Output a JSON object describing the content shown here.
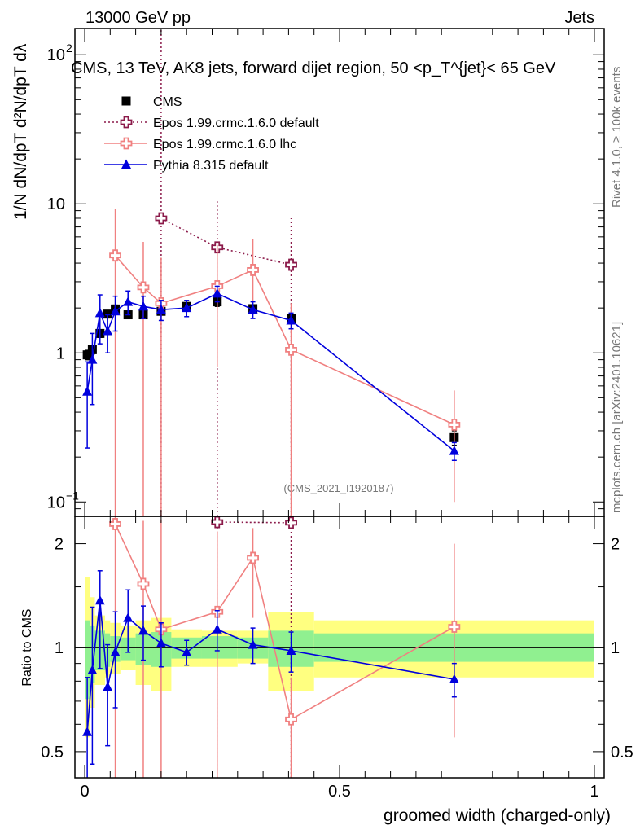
{
  "header": {
    "left": "13000 GeV pp",
    "right": "Jets",
    "side_rivet": "Rivet 4.1.0, ≥ 100k events",
    "side_mcplots": "mcplots.cern.ch [arXiv:2401.10621]"
  },
  "labels": {
    "ylabel_main": "1/N dN/dpT d²N/dpT dλ",
    "ylabel_ratio": "Ratio to CMS",
    "xlabel": "groomed width (charged-only)",
    "analysis_id": "(CMS_2021_I1920187)"
  },
  "chart_data": [
    {
      "type": "scatter",
      "title": "CMS, 13 TeV, AK8 jets, forward dijet region, 50 <p_T^{jet}< 65 GeV",
      "xlabel": "groomed width (charged-only)",
      "ylabel": "1/N dN/dpT d²N/dpT dλ",
      "yscale": "log",
      "xlim": [
        0,
        1
      ],
      "ylim": [
        0.08,
        150
      ],
      "yticks": [
        {
          "value": 0.1,
          "label": "10",
          "exp": "−1"
        },
        {
          "value": 1,
          "label": "1",
          "exp": ""
        },
        {
          "value": 10,
          "label": "10",
          "exp": ""
        },
        {
          "value": 100,
          "label": "10",
          "exp": "2"
        }
      ],
      "legend": [
        "CMS",
        "Epos 1.99.crmc.1.6.0 default",
        "Epos 1.99.crmc.1.6.0 lhc",
        "Pythia 8.315 default"
      ],
      "legend_position": "top-left",
      "series": [
        {
          "name": "CMS",
          "color": "#000000",
          "marker": "square",
          "x": [
            0.005,
            0.015,
            0.03,
            0.045,
            0.06,
            0.085,
            0.115,
            0.15,
            0.2,
            0.26,
            0.33,
            0.405,
            0.725
          ],
          "y": [
            0.97,
            1.05,
            1.35,
            1.82,
            1.97,
            1.8,
            1.8,
            1.9,
            2.05,
            2.2,
            1.98,
            1.7,
            0.27
          ],
          "yerr_low": [
            0.07,
            0.07,
            0.08,
            0.1,
            0.12,
            0.1,
            0.1,
            0.1,
            0.12,
            0.15,
            0.12,
            0.1,
            0.03
          ],
          "yerr_high": [
            0.07,
            0.07,
            0.08,
            0.1,
            0.12,
            0.1,
            0.1,
            0.1,
            0.12,
            0.15,
            0.12,
            0.1,
            0.03
          ]
        },
        {
          "name": "Epos 1.99.crmc.1.6.0 default",
          "color": "#8b1a4a",
          "marker": "open-cross",
          "line": "dotted",
          "x": [
            0.15,
            0.26,
            0.405
          ],
          "y": [
            8.0,
            5.1,
            3.9
          ],
          "yerr_low": [
            7.99,
            5.09,
            3.89
          ],
          "yerr_high": [
            150,
            5.3,
            4.1
          ]
        },
        {
          "name": "Epos 1.99.crmc.1.6.0 lhc",
          "color": "#f08080",
          "marker": "open-cross",
          "line": "solid",
          "x": [
            0.06,
            0.115,
            0.15,
            0.26,
            0.33,
            0.405,
            0.725
          ],
          "y": [
            4.5,
            2.75,
            2.15,
            2.8,
            3.6,
            1.05,
            0.33
          ],
          "yerr_low": [
            4.49,
            2.74,
            2.14,
            2.0,
            1.8,
            1.04,
            0.23
          ],
          "yerr_high": [
            4.7,
            2.8,
            2.2,
            2.5,
            2.2,
            1.1,
            0.23
          ]
        },
        {
          "name": "Pythia 8.315 default",
          "color": "#0000dd",
          "marker": "filled-triangle",
          "line": "solid",
          "x": [
            0.005,
            0.015,
            0.03,
            0.045,
            0.06,
            0.085,
            0.115,
            0.15,
            0.2,
            0.26,
            0.33,
            0.405,
            0.725
          ],
          "y": [
            0.55,
            0.9,
            1.85,
            1.4,
            1.9,
            2.2,
            2.05,
            1.95,
            2.0,
            2.5,
            1.95,
            1.65,
            0.22
          ],
          "yerr_low": [
            0.32,
            0.45,
            0.7,
            0.4,
            0.5,
            0.4,
            0.35,
            0.3,
            0.25,
            0.3,
            0.25,
            0.2,
            0.03
          ],
          "yerr_high": [
            0.32,
            0.45,
            0.6,
            0.4,
            0.5,
            0.4,
            0.35,
            0.3,
            0.25,
            0.3,
            0.25,
            0.2,
            0.03
          ]
        }
      ]
    },
    {
      "type": "scatter",
      "title": "",
      "xlabel": "groomed width (charged-only)",
      "ylabel": "Ratio to CMS",
      "yscale": "log",
      "xlim": [
        0,
        1
      ],
      "ylim": [
        0.42,
        2.4
      ],
      "yticks": [
        {
          "value": 0.5,
          "label": "0.5"
        },
        {
          "value": 1,
          "label": "1"
        },
        {
          "value": 2,
          "label": "2"
        }
      ],
      "xticks": [
        {
          "value": 0,
          "label": "0"
        },
        {
          "value": 0.5,
          "label": "0.5"
        },
        {
          "value": 1,
          "label": "1"
        }
      ],
      "bands": {
        "color_inner": "#90f090",
        "color_outer": "#ffff80",
        "bins": [
          {
            "x0": 0.0,
            "x1": 0.01,
            "in_lo": 0.71,
            "in_hi": 1.2,
            "out_lo": 0.55,
            "out_hi": 1.6
          },
          {
            "x0": 0.01,
            "x1": 0.02,
            "in_lo": 0.79,
            "in_hi": 1.16,
            "out_lo": 0.67,
            "out_hi": 1.4
          },
          {
            "x0": 0.02,
            "x1": 0.04,
            "in_lo": 0.86,
            "in_hi": 1.12,
            "out_lo": 0.78,
            "out_hi": 1.24
          },
          {
            "x0": 0.04,
            "x1": 0.05,
            "in_lo": 0.88,
            "in_hi": 1.1,
            "out_lo": 0.82,
            "out_hi": 1.2
          },
          {
            "x0": 0.05,
            "x1": 0.07,
            "in_lo": 0.91,
            "in_hi": 1.08,
            "out_lo": 0.84,
            "out_hi": 1.18
          },
          {
            "x0": 0.07,
            "x1": 0.1,
            "in_lo": 0.92,
            "in_hi": 1.07,
            "out_lo": 0.86,
            "out_hi": 1.16
          },
          {
            "x0": 0.1,
            "x1": 0.13,
            "in_lo": 0.89,
            "in_hi": 1.1,
            "out_lo": 0.78,
            "out_hi": 1.2
          },
          {
            "x0": 0.13,
            "x1": 0.17,
            "in_lo": 0.88,
            "in_hi": 1.11,
            "out_lo": 0.75,
            "out_hi": 1.22
          },
          {
            "x0": 0.17,
            "x1": 0.23,
            "in_lo": 0.93,
            "in_hi": 1.07,
            "out_lo": 0.88,
            "out_hi": 1.13
          },
          {
            "x0": 0.23,
            "x1": 0.3,
            "in_lo": 0.93,
            "in_hi": 1.08,
            "out_lo": 0.88,
            "out_hi": 1.12
          },
          {
            "x0": 0.3,
            "x1": 0.36,
            "in_lo": 0.93,
            "in_hi": 1.07,
            "out_lo": 0.9,
            "out_hi": 1.12
          },
          {
            "x0": 0.36,
            "x1": 0.45,
            "in_lo": 0.88,
            "in_hi": 1.12,
            "out_lo": 0.75,
            "out_hi": 1.27
          },
          {
            "x0": 0.45,
            "x1": 1.0,
            "in_lo": 0.91,
            "in_hi": 1.1,
            "out_lo": 0.82,
            "out_hi": 1.2
          }
        ]
      },
      "series": [
        {
          "name": "Epos 1.99.crmc.1.6.0 default",
          "color": "#8b1a4a",
          "marker": "open-cross",
          "line": "dotted",
          "x": [
            0.26,
            0.405
          ],
          "y": [
            2.31,
            2.3
          ],
          "yerr_low": [
            1.9,
            1.9
          ],
          "yerr_high": [
            0.5,
            0.5
          ]
        },
        {
          "name": "Epos 1.99.crmc.1.6.0 lhc",
          "color": "#f08080",
          "marker": "open-cross",
          "line": "solid",
          "x": [
            0.06,
            0.115,
            0.15,
            0.26,
            0.33,
            0.405,
            0.725
          ],
          "y": [
            2.28,
            1.53,
            1.13,
            1.27,
            1.82,
            0.62,
            1.15
          ],
          "yerr_low": [
            1.9,
            1.12,
            0.72,
            0.9,
            0.6,
            0.22,
            0.6
          ],
          "yerr_high": [
            0.5,
            0.8,
            1.22,
            0.9,
            0.4,
            0.2,
            0.85
          ]
        },
        {
          "name": "Pythia 8.315 default",
          "color": "#0000dd",
          "marker": "filled-triangle",
          "line": "solid",
          "x": [
            0.005,
            0.015,
            0.03,
            0.045,
            0.06,
            0.085,
            0.115,
            0.15,
            0.2,
            0.26,
            0.33,
            0.405,
            0.725
          ],
          "y": [
            0.57,
            0.86,
            1.37,
            0.77,
            0.97,
            1.22,
            1.12,
            1.03,
            0.97,
            1.13,
            1.02,
            0.98,
            0.81
          ],
          "yerr_low": [
            0.2,
            0.4,
            0.5,
            0.25,
            0.3,
            0.25,
            0.2,
            0.15,
            0.08,
            0.15,
            0.12,
            0.13,
            0.09
          ],
          "yerr_high": [
            0.25,
            0.45,
            0.3,
            0.25,
            0.3,
            0.25,
            0.2,
            0.15,
            0.08,
            0.15,
            0.12,
            0.13,
            0.09
          ]
        }
      ]
    }
  ]
}
